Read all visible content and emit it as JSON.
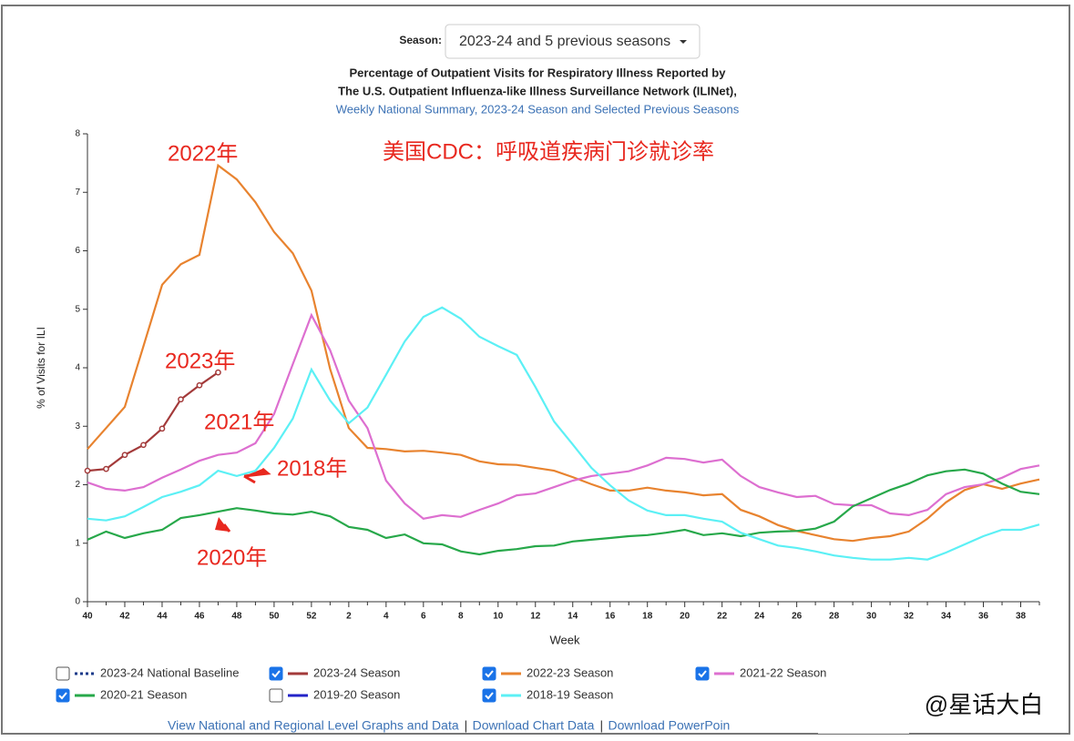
{
  "season_label": "Season:",
  "season_select": "2023-24 and 5 previous seasons",
  "chart_data": {
    "type": "line",
    "title": "Percentage of Outpatient Visits for Respiratory Illness Reported by",
    "title2": "The U.S. Outpatient Influenza-like Illness Surveillance Network (ILINet),",
    "subtitle": "Weekly National Summary, 2023-24 Season and Selected Previous Seasons",
    "xlabel": "Week",
    "ylabel": "% of Visits for ILI",
    "ylim": [
      0,
      8
    ],
    "yticks": [
      0,
      1,
      2,
      3,
      4,
      5,
      6,
      7,
      8
    ],
    "categories": [
      40,
      null,
      42,
      null,
      44,
      null,
      46,
      null,
      48,
      null,
      50,
      null,
      52,
      null,
      2,
      null,
      4,
      null,
      6,
      null,
      8,
      null,
      10,
      null,
      12,
      null,
      14,
      null,
      16,
      null,
      18,
      null,
      20,
      null,
      22,
      null,
      24,
      null,
      26,
      null,
      28,
      null,
      30,
      null,
      32,
      null,
      34,
      null,
      36,
      null,
      38,
      null
    ],
    "series": [
      {
        "name": "2023-24 National Baseline",
        "color": "#1a3a8a",
        "checked": false
      },
      {
        "name": "2023-24 Season",
        "color": "#a33a3a",
        "checked": true,
        "markers": true,
        "values": [
          2.24,
          2.27,
          2.51,
          2.68,
          2.96,
          3.46,
          3.7,
          3.92,
          null,
          null,
          null,
          null,
          null,
          null,
          null,
          null,
          null,
          null,
          null,
          null,
          null,
          null,
          null,
          null,
          null,
          null,
          null,
          null,
          null,
          null,
          null,
          null,
          null,
          null,
          null,
          null,
          null,
          null,
          null,
          null,
          null,
          null,
          null,
          null,
          null,
          null,
          null,
          null,
          null,
          null,
          null,
          null
        ]
      },
      {
        "name": "2022-23 Season",
        "color": "#e8832f",
        "checked": true,
        "values": [
          2.61,
          2.97,
          3.33,
          4.37,
          5.42,
          5.77,
          5.93,
          7.46,
          7.22,
          6.83,
          6.32,
          5.96,
          5.32,
          3.98,
          2.97,
          2.63,
          2.61,
          2.57,
          2.58,
          2.55,
          2.51,
          2.4,
          2.35,
          2.34,
          2.29,
          2.24,
          2.13,
          2.01,
          1.9,
          1.9,
          1.95,
          1.9,
          1.87,
          1.82,
          1.84,
          1.57,
          1.46,
          1.31,
          1.21,
          1.14,
          1.07,
          1.04,
          1.09,
          1.12,
          1.2,
          1.42,
          1.7,
          1.91,
          2.01,
          1.93,
          2.02,
          2.09
        ]
      },
      {
        "name": "2021-22 Season",
        "color": "#dd6fd0",
        "checked": true,
        "values": [
          2.04,
          1.93,
          1.9,
          1.96,
          2.12,
          2.26,
          2.41,
          2.51,
          2.55,
          2.71,
          3.21,
          4.06,
          4.9,
          4.3,
          3.44,
          2.97,
          2.07,
          1.68,
          1.42,
          1.48,
          1.45,
          1.57,
          1.68,
          1.82,
          1.85,
          1.96,
          2.07,
          2.15,
          2.19,
          2.23,
          2.33,
          2.46,
          2.44,
          2.38,
          2.43,
          2.15,
          1.96,
          1.87,
          1.79,
          1.81,
          1.67,
          1.65,
          1.65,
          1.51,
          1.48,
          1.57,
          1.84,
          1.96,
          2.01,
          2.12,
          2.27,
          2.33
        ]
      },
      {
        "name": "2020-21 Season",
        "color": "#27a84a",
        "checked": true,
        "values": [
          1.06,
          1.2,
          1.09,
          1.17,
          1.23,
          1.43,
          1.48,
          1.54,
          1.6,
          1.56,
          1.51,
          1.49,
          1.54,
          1.46,
          1.28,
          1.23,
          1.09,
          1.15,
          1.0,
          0.98,
          0.86,
          0.81,
          0.87,
          0.9,
          0.95,
          0.96,
          1.03,
          1.06,
          1.09,
          1.12,
          1.14,
          1.18,
          1.23,
          1.14,
          1.17,
          1.12,
          1.18,
          1.2,
          1.21,
          1.25,
          1.37,
          1.63,
          1.77,
          1.91,
          2.02,
          2.16,
          2.23,
          2.26,
          2.19,
          2.02,
          1.88,
          1.84
        ]
      },
      {
        "name": "2019-20 Season",
        "color": "#2323c8",
        "checked": false
      },
      {
        "name": "2018-19 Season",
        "color": "#5cf0f5",
        "checked": true,
        "values": [
          1.42,
          1.39,
          1.46,
          1.62,
          1.79,
          1.88,
          1.99,
          2.24,
          2.15,
          2.24,
          2.63,
          3.13,
          3.97,
          3.44,
          3.05,
          3.32,
          3.88,
          4.45,
          4.87,
          5.03,
          4.84,
          4.53,
          4.37,
          4.22,
          3.67,
          3.08,
          2.69,
          2.29,
          1.99,
          1.73,
          1.56,
          1.48,
          1.48,
          1.42,
          1.37,
          1.18,
          1.07,
          0.96,
          0.92,
          0.86,
          0.79,
          0.75,
          0.72,
          0.72,
          0.75,
          0.72,
          0.84,
          0.98,
          1.12,
          1.23,
          1.23,
          1.32
        ]
      }
    ],
    "annotations": [
      "美国CDC：呼吸道疾病门诊就诊率",
      "2022年",
      "2023年",
      "2021年",
      "2018年",
      "2020年"
    ]
  },
  "links": [
    "View National and Regional Level Graphs and Data",
    "Download Chart Data",
    "Download PowerPoin"
  ],
  "separator": "|",
  "watermark": "@星话大白"
}
